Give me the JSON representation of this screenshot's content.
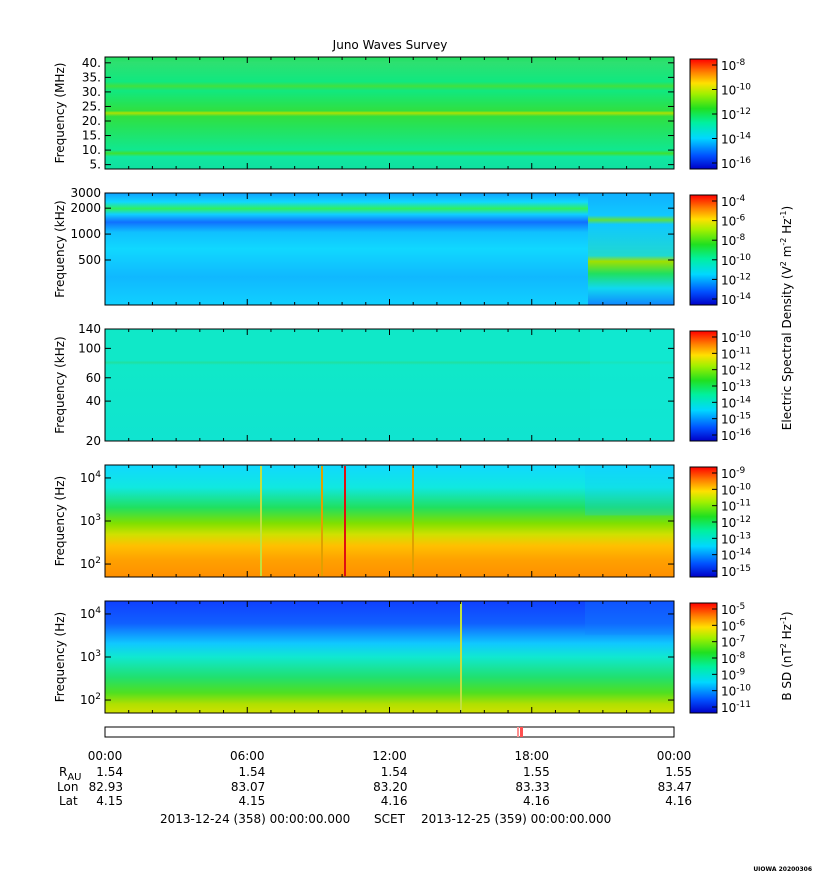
{
  "chart_data": {
    "type": "heatmap",
    "title": "Juno Waves Survey",
    "panels": [
      {
        "ylabel": "Frequency (MHz)",
        "yticks": [
          "40.",
          "35.",
          "30.",
          "25.",
          "20.",
          "15.",
          "10.",
          "5."
        ],
        "yscale": "linear",
        "ylim": [
          3.5,
          42
        ],
        "colorbar_ticks": [
          {
            "base": "10",
            "exp": "-8"
          },
          {
            "base": "10",
            "exp": "-10"
          },
          {
            "base": "10",
            "exp": "-12"
          },
          {
            "base": "10",
            "exp": "-14"
          },
          {
            "base": "10",
            "exp": "-16"
          }
        ]
      },
      {
        "ylabel": "Frequency (kHz)",
        "yticks": [
          "3000",
          "2000",
          "1000",
          "500"
        ],
        "yscale": "log",
        "ylim": [
          150,
          3000
        ],
        "colorbar_ticks": [
          {
            "base": "10",
            "exp": "-4"
          },
          {
            "base": "10",
            "exp": "-6"
          },
          {
            "base": "10",
            "exp": "-8"
          },
          {
            "base": "10",
            "exp": "-10"
          },
          {
            "base": "10",
            "exp": "-12"
          },
          {
            "base": "10",
            "exp": "-14"
          }
        ]
      },
      {
        "ylabel": "Frequency (kHz)",
        "yticks": [
          "140",
          "100",
          "60",
          "40",
          "20"
        ],
        "yscale": "log",
        "ylim": [
          20,
          140
        ],
        "colorbar_ticks": [
          {
            "base": "10",
            "exp": "-10"
          },
          {
            "base": "10",
            "exp": "-11"
          },
          {
            "base": "10",
            "exp": "-12"
          },
          {
            "base": "10",
            "exp": "-13"
          },
          {
            "base": "10",
            "exp": "-14"
          },
          {
            "base": "10",
            "exp": "-15"
          },
          {
            "base": "10",
            "exp": "-16"
          }
        ]
      },
      {
        "ylabel": "Frequency (Hz)",
        "yticks": [
          {
            "base": "10",
            "exp": "4"
          },
          {
            "base": "10",
            "exp": "3"
          },
          {
            "base": "10",
            "exp": "2"
          }
        ],
        "yscale": "log",
        "ylim": [
          50,
          20000
        ],
        "colorbar_ticks": [
          {
            "base": "10",
            "exp": "-9"
          },
          {
            "base": "10",
            "exp": "-10"
          },
          {
            "base": "10",
            "exp": "-11"
          },
          {
            "base": "10",
            "exp": "-12"
          },
          {
            "base": "10",
            "exp": "-13"
          },
          {
            "base": "10",
            "exp": "-14"
          },
          {
            "base": "10",
            "exp": "-15"
          }
        ]
      },
      {
        "ylabel": "Frequency (Hz)",
        "yticks": [
          {
            "base": "10",
            "exp": "4"
          },
          {
            "base": "10",
            "exp": "3"
          },
          {
            "base": "10",
            "exp": "2"
          }
        ],
        "yscale": "log",
        "ylim": [
          50,
          20000
        ],
        "colorbar_ticks": [
          {
            "base": "10",
            "exp": "-5"
          },
          {
            "base": "10",
            "exp": "-6"
          },
          {
            "base": "10",
            "exp": "-7"
          },
          {
            "base": "10",
            "exp": "-8"
          },
          {
            "base": "10",
            "exp": "-9"
          },
          {
            "base": "10",
            "exp": "-10"
          },
          {
            "base": "10",
            "exp": "-11"
          }
        ]
      }
    ],
    "colorbar_label_e": "Electric Spectral Density (V",
    "colorbar_label_b": "B SD (nT",
    "x_ticks": [
      "00:00",
      "06:00",
      "12:00",
      "18:00",
      "00:00"
    ],
    "ephemeris": {
      "labels": {
        "rau_main": "R",
        "rau_sub": "AU",
        "lon": "Lon",
        "lat": "Lat"
      },
      "rows": [
        {
          "rau": "1.54",
          "lon": "82.93",
          "lat": "4.15"
        },
        {
          "rau": "1.54",
          "lon": "83.07",
          "lat": "4.15"
        },
        {
          "rau": "1.54",
          "lon": "83.20",
          "lat": "4.16"
        },
        {
          "rau": "1.55",
          "lon": "83.33",
          "lat": "4.16"
        },
        {
          "rau": "1.55",
          "lon": "83.47",
          "lat": "4.16"
        }
      ]
    },
    "footer": {
      "start": "2013-12-24 (358) 00:00:00.000",
      "mid": "SCET",
      "end": "2013-12-25 (359) 00:00:00.000"
    },
    "stamp": "UIOWA 20200306"
  }
}
